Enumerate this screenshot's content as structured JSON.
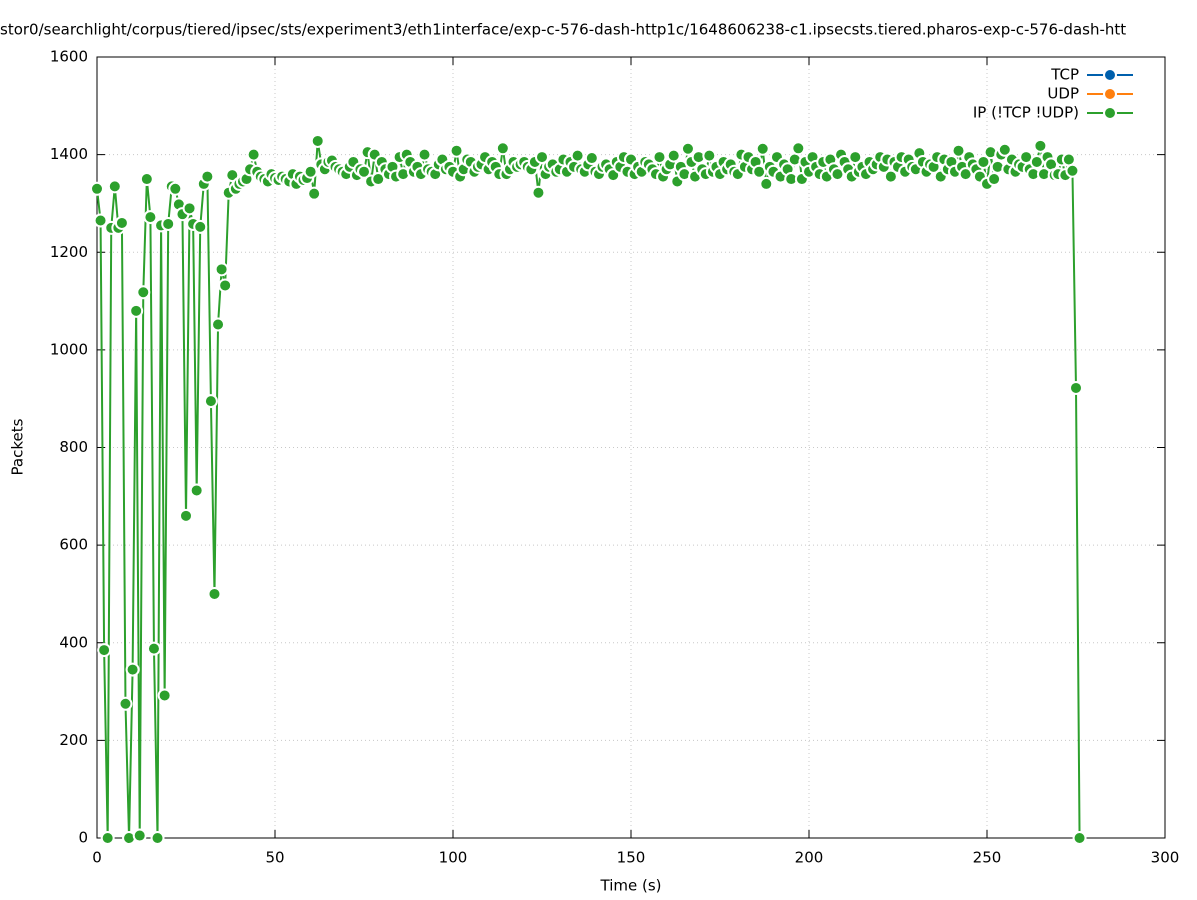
{
  "chart_data": {
    "type": "line",
    "title": "stor0/searchlight/corpus/tiered/ipsec/sts/experiment3/eth1interface/exp-c-576-dash-http1c/1648606238-c1.ipsecsts.tiered.pharos-exp-c-576-dash-htt",
    "xlabel": "Time (s)",
    "ylabel": "Packets",
    "xlim": [
      0,
      300
    ],
    "xticks": [
      0,
      50,
      100,
      150,
      200,
      250,
      300
    ],
    "ylim": [
      0,
      1600
    ],
    "yticks": [
      0,
      200,
      400,
      600,
      800,
      1000,
      1200,
      1400,
      1600
    ],
    "grid": true,
    "legend": "top-right",
    "x": [
      0,
      1,
      2,
      3,
      4,
      5,
      6,
      7,
      8,
      9,
      10,
      11,
      12,
      13,
      14,
      15,
      16,
      17,
      18,
      19,
      20,
      21,
      22,
      23,
      24,
      25,
      26,
      27,
      28,
      29,
      30,
      31,
      32,
      33,
      34,
      35,
      36,
      37,
      38,
      39,
      40,
      41,
      42,
      43,
      44,
      45,
      46,
      47,
      48,
      49,
      50,
      51,
      52,
      53,
      54,
      55,
      56,
      57,
      58,
      59,
      60,
      61,
      62,
      63,
      64,
      65,
      66,
      67,
      68,
      69,
      70,
      71,
      72,
      73,
      74,
      75,
      76,
      77,
      78,
      79,
      80,
      81,
      82,
      83,
      84,
      85,
      86,
      87,
      88,
      89,
      90,
      91,
      92,
      93,
      94,
      95,
      96,
      97,
      98,
      99,
      100,
      101,
      102,
      103,
      104,
      105,
      106,
      107,
      108,
      109,
      110,
      111,
      112,
      113,
      114,
      115,
      116,
      117,
      118,
      119,
      120,
      121,
      122,
      123,
      124,
      125,
      126,
      127,
      128,
      129,
      130,
      131,
      132,
      133,
      134,
      135,
      136,
      137,
      138,
      139,
      140,
      141,
      142,
      143,
      144,
      145,
      146,
      147,
      148,
      149,
      150,
      151,
      152,
      153,
      154,
      155,
      156,
      157,
      158,
      159,
      160,
      161,
      162,
      163,
      164,
      165,
      166,
      167,
      168,
      169,
      170,
      171,
      172,
      173,
      174,
      175,
      176,
      177,
      178,
      179,
      180,
      181,
      182,
      183,
      184,
      185,
      186,
      187,
      188,
      189,
      190,
      191,
      192,
      193,
      194,
      195,
      196,
      197,
      198,
      199,
      200,
      201,
      202,
      203,
      204,
      205,
      206,
      207,
      208,
      209,
      210,
      211,
      212,
      213,
      214,
      215,
      216,
      217,
      218,
      219,
      220,
      221,
      222,
      223,
      224,
      225,
      226,
      227,
      228,
      229,
      230,
      231,
      232,
      233,
      234,
      235,
      236,
      237,
      238,
      239,
      240,
      241,
      242,
      243,
      244,
      245,
      246,
      247,
      248,
      249,
      250,
      251,
      252,
      253,
      254,
      255,
      256,
      257,
      258,
      259,
      260,
      261,
      262,
      263,
      264,
      265,
      266,
      267,
      268,
      269,
      270,
      271,
      272,
      273,
      274,
      275,
      276
    ],
    "series": [
      {
        "name": "TCP",
        "color": "#0060ad"
      },
      {
        "name": "UDP",
        "color": "#ff7f0e"
      },
      {
        "name": "IP (!TCP  !UDP)",
        "color": "#2ca02c",
        "values": [
          1330,
          1265,
          385,
          0,
          1250,
          1335,
          1250,
          1260,
          275,
          0,
          345,
          1080,
          5,
          1118,
          1350,
          1272,
          388,
          0,
          1255,
          292,
          1258,
          1335,
          1330,
          1298,
          1278,
          660,
          1290,
          1258,
          712,
          1252,
          1340,
          1355,
          895,
          500,
          1052,
          1165,
          1132,
          1322,
          1358,
          1330,
          1340,
          1345,
          1350,
          1370,
          1400,
          1365,
          1355,
          1350,
          1345,
          1360,
          1352,
          1348,
          1355,
          1350,
          1345,
          1360,
          1340,
          1355,
          1348,
          1352,
          1365,
          1320,
          1428,
          1380,
          1370,
          1385,
          1388,
          1375,
          1370,
          1365,
          1360,
          1375,
          1385,
          1358,
          1370,
          1365,
          1405,
          1345,
          1400,
          1350,
          1385,
          1370,
          1360,
          1375,
          1355,
          1395,
          1360,
          1400,
          1385,
          1365,
          1375,
          1360,
          1400,
          1370,
          1365,
          1360,
          1380,
          1390,
          1370,
          1375,
          1365,
          1408,
          1355,
          1370,
          1390,
          1385,
          1365,
          1375,
          1380,
          1395,
          1370,
          1385,
          1375,
          1360,
          1413,
          1360,
          1370,
          1385,
          1375,
          1380,
          1385,
          1375,
          1370,
          1385,
          1322,
          1395,
          1360,
          1375,
          1380,
          1365,
          1370,
          1390,
          1365,
          1385,
          1375,
          1398,
          1370,
          1365,
          1380,
          1393,
          1365,
          1360,
          1375,
          1380,
          1370,
          1358,
          1385,
          1375,
          1395,
          1365,
          1390,
          1360,
          1375,
          1365,
          1385,
          1380,
          1370,
          1360,
          1395,
          1355,
          1370,
          1380,
          1398,
          1345,
          1375,
          1360,
          1412,
          1385,
          1355,
          1395,
          1370,
          1360,
          1398,
          1365,
          1375,
          1360,
          1385,
          1370,
          1380,
          1365,
          1360,
          1400,
          1375,
          1395,
          1370,
          1385,
          1365,
          1412,
          1340,
          1375,
          1365,
          1395,
          1355,
          1380,
          1370,
          1350,
          1390,
          1413,
          1350,
          1385,
          1365,
          1395,
          1375,
          1360,
          1385,
          1355,
          1390,
          1370,
          1360,
          1400,
          1385,
          1370,
          1355,
          1395,
          1365,
          1375,
          1360,
          1385,
          1370,
          1380,
          1395,
          1375,
          1390,
          1355,
          1385,
          1375,
          1395,
          1365,
          1390,
          1375,
          1370,
          1403,
          1385,
          1365,
          1380,
          1375,
          1395,
          1355,
          1390,
          1370,
          1385,
          1365,
          1408,
          1375,
          1360,
          1395,
          1380,
          1370,
          1355,
          1385,
          1340,
          1405,
          1350,
          1375,
          1400,
          1410,
          1370,
          1390,
          1365,
          1380,
          1375,
          1395,
          1370,
          1360,
          1385,
          1418,
          1360,
          1395,
          1380,
          1358,
          1360,
          1390,
          1358,
          1390,
          1367,
          922,
          0
        ]
      }
    ]
  }
}
